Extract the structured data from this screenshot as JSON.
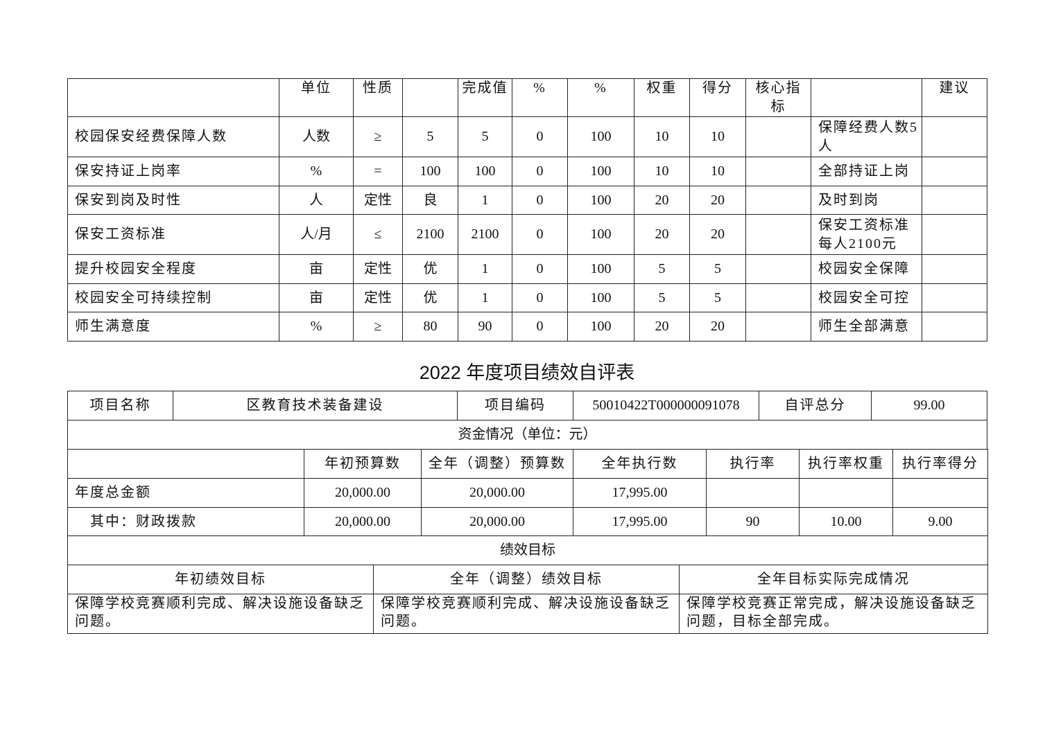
{
  "indicator_table": {
    "header": [
      "",
      "单位",
      "性质",
      "",
      "完成值",
      "%",
      "%",
      "权重",
      "得分",
      "核心指标",
      "",
      "建议"
    ],
    "rows": [
      [
        "校园保安经费保障人数",
        "人数",
        "≥",
        "5",
        "5",
        "0",
        "100",
        "10",
        "10",
        "",
        "保障经费人数5人",
        ""
      ],
      [
        "保安持证上岗率",
        "%",
        "=",
        "100",
        "100",
        "0",
        "100",
        "10",
        "10",
        "",
        "全部持证上岗",
        ""
      ],
      [
        "保安到岗及时性",
        "人",
        "定性",
        "良",
        "1",
        "0",
        "100",
        "20",
        "20",
        "",
        "及时到岗",
        ""
      ],
      [
        "保安工资标准",
        "人/月",
        "≤",
        "2100",
        "2100",
        "0",
        "100",
        "20",
        "20",
        "",
        "保安工资标准每人2100元",
        ""
      ],
      [
        "提升校园安全程度",
        "亩",
        "定性",
        "优",
        "1",
        "0",
        "100",
        "5",
        "5",
        "",
        "校园安全保障",
        ""
      ],
      [
        "校园安全可持续控制",
        "亩",
        "定性",
        "优",
        "1",
        "0",
        "100",
        "5",
        "5",
        "",
        "校园安全可控",
        ""
      ],
      [
        "师生满意度",
        "%",
        "≥",
        "80",
        "90",
        "0",
        "100",
        "20",
        "20",
        "",
        "师生全部满意",
        ""
      ]
    ]
  },
  "eval": {
    "title": "2022 年度项目绩效自评表",
    "project_name_label": "项目名称",
    "project_name": "区教育技术装备建设",
    "project_code_label": "项目编码",
    "project_code": "50010422T000000091078",
    "total_score_label": "自评总分",
    "total_score": "99.00",
    "funds_header": "资金情况（单位：元）",
    "funds_columns": [
      "",
      "年初预算数",
      "全年（调整）预算数",
      "全年执行数",
      "执行率",
      "执行率权重",
      "执行率得分"
    ],
    "funds_rows": [
      [
        "年度总金额",
        "20,000.00",
        "20,000.00",
        "17,995.00",
        "",
        "",
        ""
      ],
      [
        "其中：财政拨款",
        "20,000.00",
        "20,000.00",
        "17,995.00",
        "90",
        "10.00",
        "9.00"
      ]
    ],
    "goals_header": "绩效目标",
    "goals_columns": [
      "年初绩效目标",
      "全年（调整）绩效目标",
      "全年目标实际完成情况"
    ],
    "goals_values": [
      "保障学校竞赛顺利完成、解决设施设备缺乏问题。",
      "保障学校竞赛顺利完成、解决设施设备缺乏问题。",
      "保障学校竞赛正常完成，解决设施设备缺乏问题，目标全部完成。"
    ]
  }
}
